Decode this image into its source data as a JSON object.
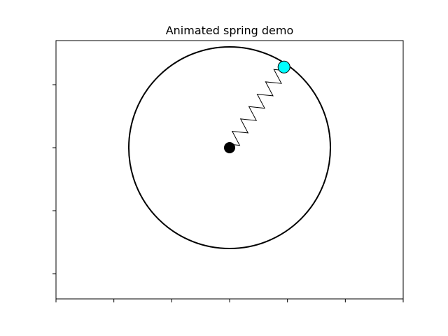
{
  "chart_data": {
    "type": "scatter",
    "title": "Animated spring demo",
    "xlabel": "",
    "ylabel": "",
    "xlim": [
      -1.5,
      1.5
    ],
    "ylim": [
      -1.2,
      0.85
    ],
    "x_tick_values": [
      -1.5,
      -1.0,
      -0.5,
      0.0,
      0.5,
      1.0,
      1.5
    ],
    "y_tick_values": [
      -1.0,
      -0.5,
      0.0,
      0.5,
      1.0
    ],
    "tick_labels_visible": false,
    "grid": false,
    "circle": {
      "center": [
        0.0,
        0.0
      ],
      "radius": 0.8,
      "color": "#000000"
    },
    "pivot": {
      "x": 0.0,
      "y": 0.0,
      "color": "#000000"
    },
    "bob": {
      "x": 0.47,
      "y": 0.64,
      "color": "#00ffff",
      "edge_color": "#000000"
    },
    "spring": {
      "from": [
        0.0,
        0.0
      ],
      "to": [
        0.47,
        0.64
      ],
      "coils": 6,
      "color": "#000000"
    }
  }
}
